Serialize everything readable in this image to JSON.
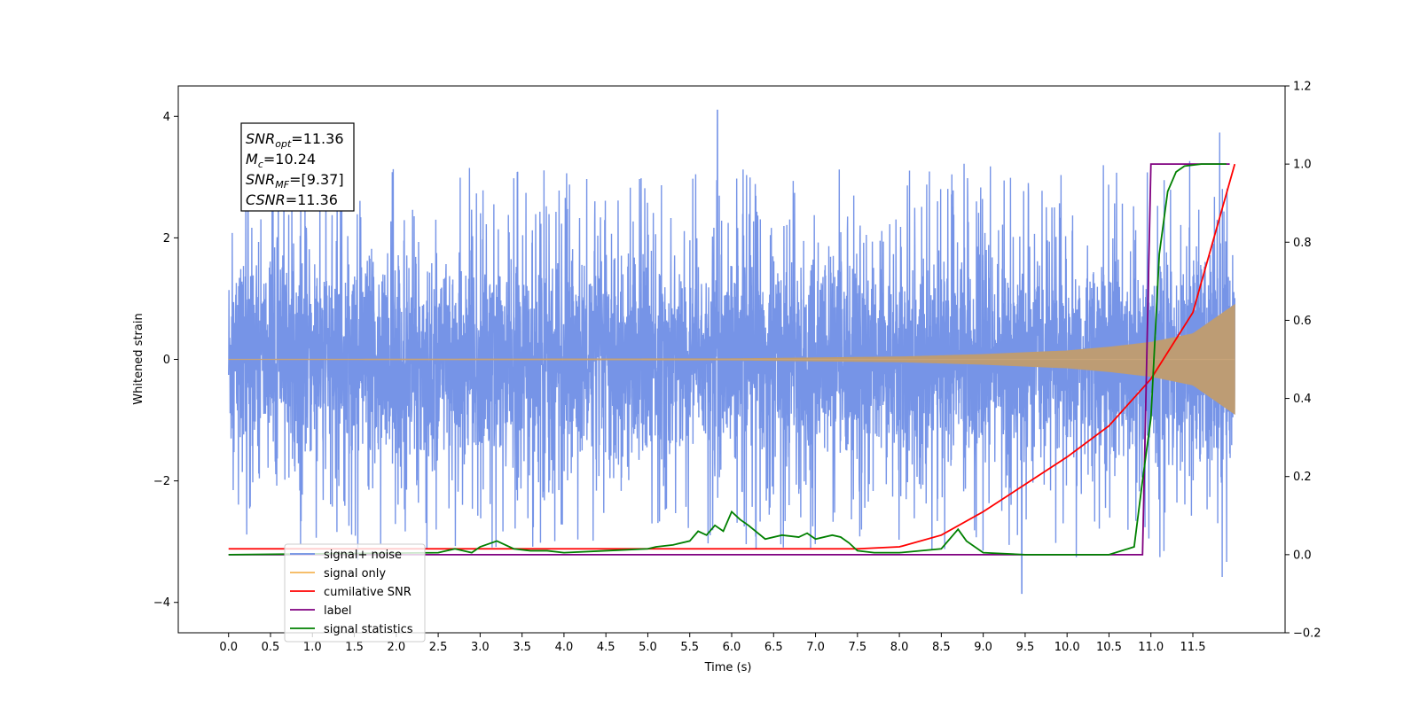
{
  "chart_data": {
    "type": "line",
    "xlabel": "Time (s)",
    "ylabel": "Whitened strain",
    "xlim": [
      -0.6,
      12.6
    ],
    "ylim_left": [
      -4.5,
      4.5
    ],
    "ylim_right": [
      -0.2,
      1.2
    ],
    "xticks": [
      "0.0",
      "0.5",
      "1.0",
      "1.5",
      "2.0",
      "2.5",
      "3.0",
      "3.5",
      "4.0",
      "4.5",
      "5.0",
      "5.5",
      "6.0",
      "6.5",
      "7.0",
      "7.5",
      "8.0",
      "8.5",
      "9.0",
      "9.5",
      "10.0",
      "10.5",
      "11.0",
      "11.5"
    ],
    "yticks_left": [
      "4",
      "2",
      "0",
      "−2",
      "−4"
    ],
    "yticks_right": [
      "1.2",
      "1.0",
      "0.8",
      "0.6",
      "0.4",
      "0.2",
      "0.0",
      "−0.2"
    ],
    "annotation": [
      {
        "main": "SNR",
        "sub": "opt",
        "rest": "=11.36"
      },
      {
        "main": "M",
        "sub": "c",
        "rest": "=10.24"
      },
      {
        "main": "SNR",
        "sub": "MF",
        "rest": "=[9.37]"
      },
      {
        "main": "CSNR",
        "sub": "",
        "rest": "=11.36"
      }
    ],
    "series": [
      {
        "name": "signal+ noise",
        "axis": "left",
        "color": "#6f8ee6",
        "noise_std": 1.0,
        "peak_max": 4.1,
        "peak_min": -3.85,
        "envelope_t": [
          0,
          2,
          4,
          6,
          8,
          9,
          10,
          10.5,
          11,
          11.5,
          12
        ],
        "envelope_y": [
          2.4,
          2.45,
          2.4,
          2.4,
          2.45,
          2.45,
          2.45,
          2.5,
          2.5,
          2.5,
          2.7
        ]
      },
      {
        "name": "signal only",
        "axis": "left",
        "color": "#f5b456",
        "amp_t": [
          0,
          6,
          8,
          9,
          10,
          10.5,
          11,
          11.5,
          12
        ],
        "amp_y": [
          0.0,
          0.01,
          0.04,
          0.08,
          0.14,
          0.2,
          0.28,
          0.42,
          0.9
        ]
      },
      {
        "name": "cumilative SNR",
        "axis": "right",
        "color": "#ff0000",
        "x": [
          0,
          7.5,
          8.0,
          8.5,
          9.0,
          9.5,
          10.0,
          10.5,
          11.0,
          11.5,
          12.0
        ],
        "y": [
          0.015,
          0.015,
          0.02,
          0.05,
          0.11,
          0.18,
          0.25,
          0.33,
          0.45,
          0.62,
          1.0
        ]
      },
      {
        "name": "label",
        "axis": "right",
        "color": "#800080",
        "x": [
          0,
          10.9,
          10.9,
          11.0,
          11.94
        ],
        "y": [
          0.0,
          0.0,
          0.0,
          1.0,
          1.0
        ]
      },
      {
        "name": "signal statistics",
        "axis": "right",
        "color": "#008000",
        "x": [
          0,
          2.5,
          2.7,
          2.9,
          3.0,
          3.2,
          3.4,
          3.6,
          3.8,
          4.0,
          4.5,
          5.0,
          5.1,
          5.3,
          5.5,
          5.6,
          5.7,
          5.8,
          5.9,
          6.0,
          6.1,
          6.2,
          6.4,
          6.6,
          6.8,
          6.9,
          7.0,
          7.2,
          7.3,
          7.4,
          7.5,
          7.7,
          8.0,
          8.5,
          8.7,
          8.8,
          9.0,
          9.5,
          10.0,
          10.5,
          10.8,
          10.9,
          11.0,
          11.1,
          11.2,
          11.3,
          11.4,
          11.6,
          11.9
        ],
        "y": [
          0.0,
          0.005,
          0.015,
          0.005,
          0.02,
          0.035,
          0.015,
          0.01,
          0.01,
          0.005,
          0.01,
          0.015,
          0.02,
          0.025,
          0.035,
          0.06,
          0.05,
          0.075,
          0.06,
          0.11,
          0.09,
          0.075,
          0.04,
          0.05,
          0.045,
          0.055,
          0.04,
          0.05,
          0.045,
          0.03,
          0.01,
          0.005,
          0.005,
          0.015,
          0.065,
          0.035,
          0.005,
          0.0,
          0.0,
          0.0,
          0.02,
          0.19,
          0.35,
          0.77,
          0.93,
          0.98,
          0.995,
          1.0,
          1.0
        ]
      }
    ],
    "legend": {
      "position": "lower-left",
      "entries": [
        {
          "label": "signal+ noise",
          "color": "#6f8ee6"
        },
        {
          "label": "signal only",
          "color": "#f5b456"
        },
        {
          "label": "cumilative SNR",
          "color": "#ff0000"
        },
        {
          "label": "label",
          "color": "#800080"
        },
        {
          "label": "signal statistics",
          "color": "#008000"
        }
      ]
    }
  }
}
